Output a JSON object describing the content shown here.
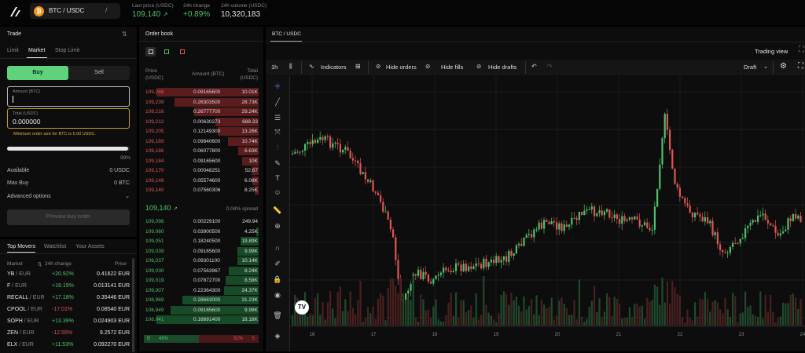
{
  "header": {
    "pair": "BTC / USDC",
    "last_price_label": "Last price (USDC)",
    "last_price": "109,140",
    "change_label": "24h change",
    "change": "+0.89%",
    "volume_label": "24h volume (USDC)",
    "volume": "10,320,183"
  },
  "trade": {
    "title": "Trade",
    "tabs": [
      "Limit",
      "Market",
      "Stop Limit"
    ],
    "buy": "Buy",
    "sell": "Sell",
    "amount_label": "Amount (BTC)",
    "total_label": "Total (USDC)",
    "total_value": "0.000000",
    "warning": "Minimum order size for BTC is 5.00 USDC.",
    "slider_pct": "99%",
    "slider_fraction": 0.99,
    "available_label": "Available",
    "available_value": "0 USDC",
    "maxbuy_label": "Max Buy",
    "maxbuy_value": "0 BTC",
    "advanced": "Advanced options",
    "preview": "Preview buy order"
  },
  "movers": {
    "tabs": [
      "Top Movers",
      "Watchlist",
      "Your Assets"
    ],
    "col_market": "Market",
    "col_change": "24h change",
    "col_price": "Price",
    "rows": [
      {
        "sym": "YB",
        "quote": "/ EUR",
        "change": "+20.92%",
        "price": "0.41622 EUR",
        "up": true
      },
      {
        "sym": "F",
        "quote": "/ EUR",
        "change": "+18.19%",
        "price": "0.013141 EUR",
        "up": true
      },
      {
        "sym": "RECALL",
        "quote": "/ EUR",
        "change": "+17.18%",
        "price": "0.35446 EUR",
        "up": true
      },
      {
        "sym": "CPOOL",
        "quote": "/ EUR",
        "change": "-17.01%",
        "price": "0.08540 EUR",
        "up": false
      },
      {
        "sym": "SOPH",
        "quote": "/ EUR",
        "change": "+13.39%",
        "price": "0.024903 EUR",
        "up": true
      },
      {
        "sym": "ZEN",
        "quote": "/ EUR",
        "change": "-12.55%",
        "price": "9.2572 EUR",
        "up": false
      },
      {
        "sym": "ELX",
        "quote": "/ EUR",
        "change": "+11.53%",
        "price": "0.092270 EUR",
        "up": true
      }
    ]
  },
  "orderbook": {
    "title": "Order book",
    "col_price": "Price\n(USDC)",
    "col_price_1": "Price",
    "col_price_2": "(USDC)",
    "col_amount": "Amount (BTC)",
    "col_total_1": "Total",
    "col_total_2": "(USDC)",
    "asks": [
      {
        "price": "109,266",
        "amount": "0.09165600",
        "total": "10.01K",
        "depth": 1.0
      },
      {
        "price": "109,239",
        "amount": "0.26303500",
        "total": "28.73K",
        "depth": 0.82
      },
      {
        "price": "109,216",
        "amount": "0.26777700",
        "total": "29.24K",
        "depth": 0.63
      },
      {
        "price": "109,212",
        "amount": "0.00630273",
        "total": "688.33",
        "depth": 0.42
      },
      {
        "price": "109,205",
        "amount": "0.12149300",
        "total": "13.26K",
        "depth": 0.4
      },
      {
        "price": "109,189",
        "amount": "0.09840600",
        "total": "10.74K",
        "depth": 0.3
      },
      {
        "price": "109,186",
        "amount": "0.06077800",
        "total": "6.63K",
        "depth": 0.2
      },
      {
        "price": "109,184",
        "amount": "0.09165600",
        "total": "10K",
        "depth": 0.16
      },
      {
        "price": "109,170",
        "amount": "0.00048251",
        "total": "52.67",
        "depth": 0.07
      },
      {
        "price": "109,148",
        "amount": "0.05574600",
        "total": "6.08K",
        "depth": 0.06
      },
      {
        "price": "109,140",
        "amount": "0.07560306",
        "total": "8.25K",
        "depth": 0.04
      }
    ],
    "mid_price": "109,140",
    "spread": "0.04% spread",
    "bids": [
      {
        "price": "109,098",
        "amount": "0.00229100",
        "total": "249.94",
        "depth": 0.0
      },
      {
        "price": "109,060",
        "amount": "0.03900500",
        "total": "4.25K",
        "depth": 0.02
      },
      {
        "price": "109,051",
        "amount": "0.18240500",
        "total": "19.89K",
        "depth": 0.18
      },
      {
        "price": "109,039",
        "amount": "0.09165600",
        "total": "9.99K",
        "depth": 0.21
      },
      {
        "price": "109,037",
        "amount": "0.09301100",
        "total": "10.14K",
        "depth": 0.21
      },
      {
        "price": "109,030",
        "amount": "0.07563967",
        "total": "8.24K",
        "depth": 0.29
      },
      {
        "price": "109,019",
        "amount": "0.07872700",
        "total": "8.58K",
        "depth": 0.32
      },
      {
        "price": "109,007",
        "amount": "0.22364300",
        "total": "24.37K",
        "depth": 0.34
      },
      {
        "price": "108,969",
        "amount": "0.28663000",
        "total": "31.23K",
        "depth": 0.75
      },
      {
        "price": "108,949",
        "amount": "0.09165600",
        "total": "9.98K",
        "depth": 0.86
      },
      {
        "price": "108,941",
        "amount": "0.16691400",
        "total": "18.18K",
        "depth": 1.0
      }
    ],
    "buy_label": "B",
    "buy_pct": "48%",
    "sell_pct": "52%",
    "sell_label": "S",
    "buy_fraction": 0.48
  },
  "chart": {
    "tab": "BTC / USDC",
    "trading_view": "Trading view",
    "interval": "1h",
    "indicators": "Indicators",
    "hide_orders": "Hide orders",
    "hide_fills": "Hide fills",
    "hide_drafts": "Hide drafts",
    "draft": "Draft",
    "x_labels": [
      "16",
      "17",
      "18",
      "19",
      "20",
      "21",
      "22",
      "23",
      "24"
    ]
  },
  "colors": {
    "up": "#4fc16a",
    "down": "#e05555",
    "ask_bar": "#5a1c1c",
    "bid_bar": "#174a27",
    "buy_button": "#5fd37c",
    "accent_warning": "#e0b23c"
  }
}
